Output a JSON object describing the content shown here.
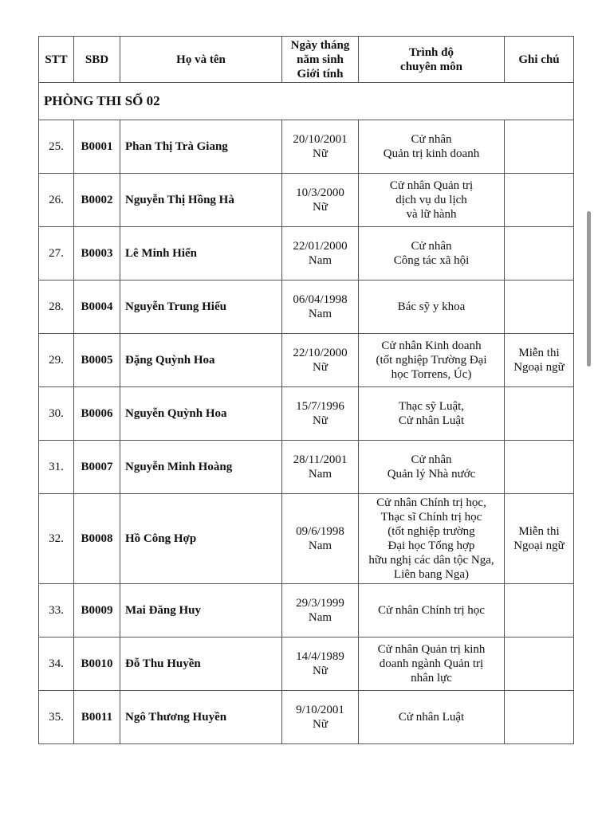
{
  "headers": {
    "stt": "STT",
    "sbd": "SBD",
    "name": "Họ và tên",
    "dob": "Ngày tháng\nnăm sinh\nGiới tính",
    "qualification": "Trình độ\nchuyên môn",
    "note": "Ghi chú"
  },
  "section_title": "PHÒNG THI SỐ 02",
  "rows": [
    {
      "stt": "25.",
      "sbd": "B0001",
      "name": "Phan Thị Trà Giang",
      "dob": "20/10/2001\nNữ",
      "qualification": "Cử nhân\nQuản trị kinh doanh",
      "note": ""
    },
    {
      "stt": "26.",
      "sbd": "B0002",
      "name": "Nguyễn Thị Hồng Hà",
      "dob": "10/3/2000\nNữ",
      "qualification": "Cử nhân Quản trị\ndịch vụ du lịch\nvà lữ hành",
      "note": ""
    },
    {
      "stt": "27.",
      "sbd": "B0003",
      "name": "Lê Minh Hiển",
      "dob": "22/01/2000\nNam",
      "qualification": "Cử nhân\nCông tác xã hội",
      "note": ""
    },
    {
      "stt": "28.",
      "sbd": "B0004",
      "name": "Nguyễn Trung Hiếu",
      "dob": "06/04/1998\nNam",
      "qualification": "Bác sỹ y khoa",
      "note": ""
    },
    {
      "stt": "29.",
      "sbd": "B0005",
      "name": "Đặng Quỳnh Hoa",
      "dob": "22/10/2000\nNữ",
      "qualification": "Cử nhân Kinh doanh\n(tốt nghiệp Trường Đại\nhọc Torrens, Úc)",
      "note": "Miễn thi\nNgoại ngữ"
    },
    {
      "stt": "30.",
      "sbd": "B0006",
      "name": "Nguyễn Quỳnh Hoa",
      "dob": "15/7/1996\nNữ",
      "qualification": "Thạc sỹ Luật,\nCử nhân Luật",
      "note": ""
    },
    {
      "stt": "31.",
      "sbd": "B0007",
      "name": "Nguyễn Minh Hoàng",
      "dob": "28/11/2001\nNam",
      "qualification": "Cử nhân\nQuản lý Nhà nước",
      "note": ""
    },
    {
      "stt": "32.",
      "sbd": "B0008",
      "name": "Hồ Công Hợp",
      "dob": "09/6/1998\nNam",
      "qualification": "Cử nhân Chính trị học,\nThạc sĩ Chính trị học\n(tốt nghiệp trường\nĐại học Tổng hợp\nhữu nghị các dân tộc Nga,\nLiên bang Nga)",
      "note": "Miễn thi\nNgoại ngữ"
    },
    {
      "stt": "33.",
      "sbd": "B0009",
      "name": "Mai Đăng Huy",
      "dob": "29/3/1999\nNam",
      "qualification": "Cử nhân Chính trị học",
      "note": ""
    },
    {
      "stt": "34.",
      "sbd": "B0010",
      "name": "Đỗ Thu Huyền",
      "dob": "14/4/1989\nNữ",
      "qualification": "Cử nhân Quản trị kinh\ndoanh ngành Quản trị\nnhân lực",
      "note": ""
    },
    {
      "stt": "35.",
      "sbd": "B0011",
      "name": "Ngô Thương Huyền",
      "dob": "9/10/2001\nNữ",
      "qualification": "Cử nhân Luật",
      "note": ""
    }
  ]
}
